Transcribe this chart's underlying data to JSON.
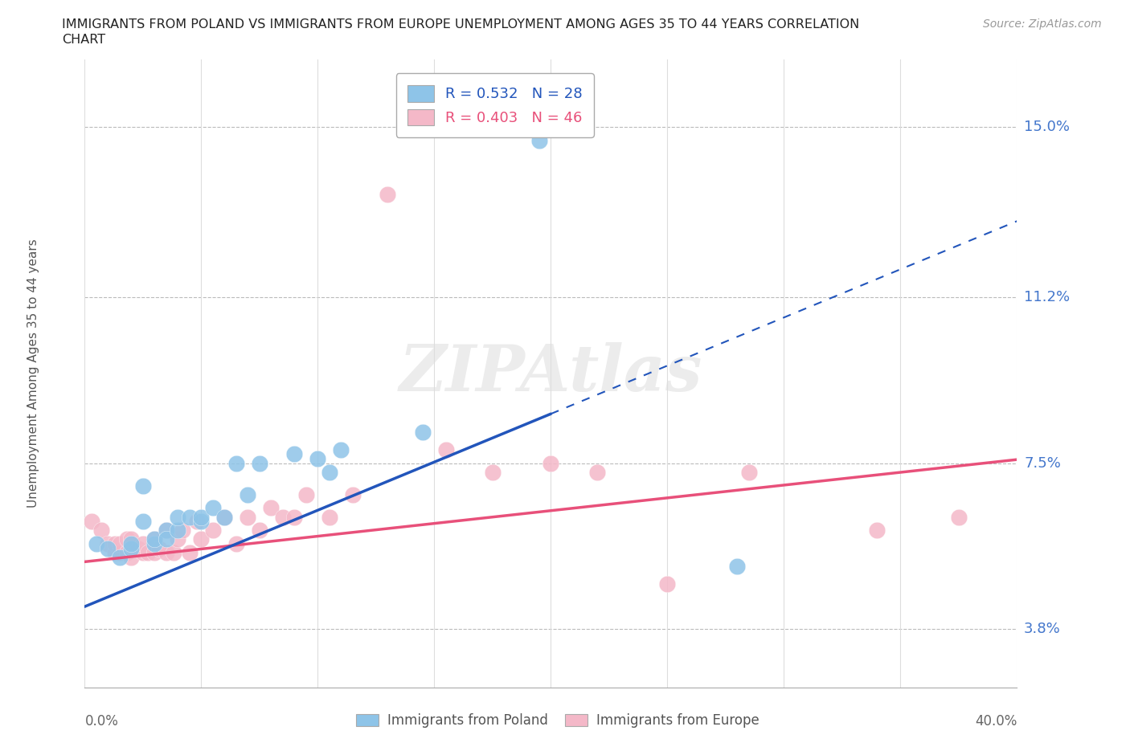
{
  "title_line1": "IMMIGRANTS FROM POLAND VS IMMIGRANTS FROM EUROPE UNEMPLOYMENT AMONG AGES 35 TO 44 YEARS CORRELATION",
  "title_line2": "CHART",
  "source": "Source: ZipAtlas.com",
  "ylabel": "Unemployment Among Ages 35 to 44 years",
  "xlim": [
    0.0,
    0.4
  ],
  "ylim": [
    0.025,
    0.165
  ],
  "yticks": [
    0.038,
    0.075,
    0.112,
    0.15
  ],
  "ytick_labels": [
    "3.8%",
    "7.5%",
    "11.2%",
    "15.0%"
  ],
  "xticks": [
    0.0,
    0.05,
    0.1,
    0.15,
    0.2,
    0.25,
    0.3,
    0.35,
    0.4
  ],
  "poland_R": 0.532,
  "poland_N": 28,
  "europe_R": 0.403,
  "europe_N": 46,
  "poland_scatter_color": "#8ec4e8",
  "europe_scatter_color": "#f4b8c8",
  "poland_line_color": "#2255bb",
  "europe_line_color": "#e8507a",
  "watermark": "ZIPAtlas",
  "background_color": "#ffffff",
  "grid_color": "#bbbbbb",
  "poland_x": [
    0.005,
    0.01,
    0.015,
    0.02,
    0.02,
    0.025,
    0.025,
    0.03,
    0.03,
    0.035,
    0.035,
    0.04,
    0.04,
    0.045,
    0.05,
    0.05,
    0.055,
    0.06,
    0.065,
    0.07,
    0.075,
    0.09,
    0.1,
    0.105,
    0.11,
    0.145,
    0.195,
    0.28
  ],
  "poland_y": [
    0.057,
    0.056,
    0.054,
    0.056,
    0.057,
    0.062,
    0.07,
    0.057,
    0.058,
    0.06,
    0.058,
    0.06,
    0.063,
    0.063,
    0.062,
    0.063,
    0.065,
    0.063,
    0.075,
    0.068,
    0.075,
    0.077,
    0.076,
    0.073,
    0.078,
    0.082,
    0.147,
    0.052
  ],
  "europe_x": [
    0.003,
    0.007,
    0.01,
    0.013,
    0.013,
    0.015,
    0.015,
    0.018,
    0.018,
    0.02,
    0.02,
    0.023,
    0.025,
    0.025,
    0.027,
    0.03,
    0.03,
    0.032,
    0.035,
    0.035,
    0.038,
    0.04,
    0.042,
    0.045,
    0.048,
    0.05,
    0.055,
    0.06,
    0.065,
    0.07,
    0.075,
    0.08,
    0.085,
    0.09,
    0.095,
    0.105,
    0.115,
    0.13,
    0.155,
    0.175,
    0.2,
    0.22,
    0.25,
    0.285,
    0.34,
    0.375
  ],
  "europe_y": [
    0.062,
    0.06,
    0.057,
    0.055,
    0.057,
    0.055,
    0.057,
    0.055,
    0.058,
    0.054,
    0.058,
    0.056,
    0.055,
    0.057,
    0.055,
    0.055,
    0.058,
    0.056,
    0.055,
    0.06,
    0.055,
    0.058,
    0.06,
    0.055,
    0.062,
    0.058,
    0.06,
    0.063,
    0.057,
    0.063,
    0.06,
    0.065,
    0.063,
    0.063,
    0.068,
    0.063,
    0.068,
    0.135,
    0.078,
    0.073,
    0.075,
    0.073,
    0.048,
    0.073,
    0.06,
    0.063
  ]
}
